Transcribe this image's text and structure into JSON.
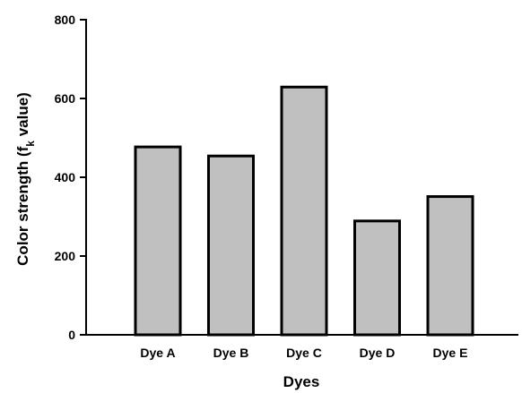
{
  "chart_data": {
    "type": "bar",
    "title": "",
    "xlabel": "Dyes",
    "ylabel": "Color strength (f",
    "ylabel_subscript": "k",
    "ylabel_suffix": " value)",
    "categories": [
      "Dye A",
      "Dye B",
      "Dye C",
      "Dye D",
      "Dye E"
    ],
    "values": [
      477,
      454,
      629,
      289,
      351
    ],
    "ylim": [
      0,
      800
    ],
    "yticks": [
      0,
      200,
      400,
      600,
      800
    ],
    "bar_color": "#c0c0c0",
    "grid": false,
    "legend": "none"
  }
}
